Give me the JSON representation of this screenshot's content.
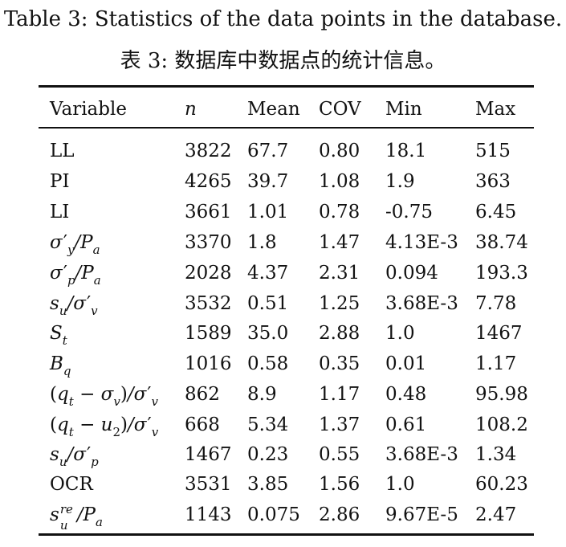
{
  "caption": {
    "english": "Table 3:  Statistics of the data points in the database.",
    "chinese": "表 3:  数据库中数据点的统计信息。"
  },
  "table": {
    "headers": [
      "Variable",
      "n",
      "Mean",
      "COV",
      "Min",
      "Max"
    ],
    "rows": [
      {
        "variable": "LL",
        "n": "3822",
        "mean": "67.7",
        "cov": "0.80",
        "min": "18.1",
        "max": "515"
      },
      {
        "variable": "PI",
        "n": "4265",
        "mean": "39.7",
        "cov": "1.08",
        "min": "1.9",
        "max": "363"
      },
      {
        "variable": "LI",
        "n": "3661",
        "mean": "1.01",
        "cov": "0.78",
        "min": "-0.75",
        "max": "6.45"
      },
      {
        "variable": "σ′y/Pa",
        "n": "3370",
        "mean": "1.8",
        "cov": "1.47",
        "min": "4.13E-3",
        "max": "38.74"
      },
      {
        "variable": "σ′p/Pa",
        "n": "2028",
        "mean": "4.37",
        "cov": "2.31",
        "min": "0.094",
        "max": "193.3"
      },
      {
        "variable": "su/σ′v",
        "n": "3532",
        "mean": "0.51",
        "cov": "1.25",
        "min": "3.68E-3",
        "max": "7.78"
      },
      {
        "variable": "St",
        "n": "1589",
        "mean": "35.0",
        "cov": "2.88",
        "min": "1.0",
        "max": "1467"
      },
      {
        "variable": "Bq",
        "n": "1016",
        "mean": "0.58",
        "cov": "0.35",
        "min": "0.01",
        "max": "1.17"
      },
      {
        "variable": "(qt − σv)/σ′v",
        "n": "862",
        "mean": "8.9",
        "cov": "1.17",
        "min": "0.48",
        "max": "95.98"
      },
      {
        "variable": "(qt − u2)/σ′v",
        "n": "668",
        "mean": "5.34",
        "cov": "1.37",
        "min": "0.61",
        "max": "108.2"
      },
      {
        "variable": "su/σ′p",
        "n": "1467",
        "mean": "0.23",
        "cov": "0.55",
        "min": "3.68E-3",
        "max": "1.34"
      },
      {
        "variable": "OCR",
        "n": "3531",
        "mean": "3.85",
        "cov": "1.56",
        "min": "1.0",
        "max": "60.23"
      },
      {
        "variable": "sure/Pa",
        "n": "1143",
        "mean": "0.075",
        "cov": "2.86",
        "min": "9.67E-5",
        "max": "2.47"
      }
    ]
  }
}
